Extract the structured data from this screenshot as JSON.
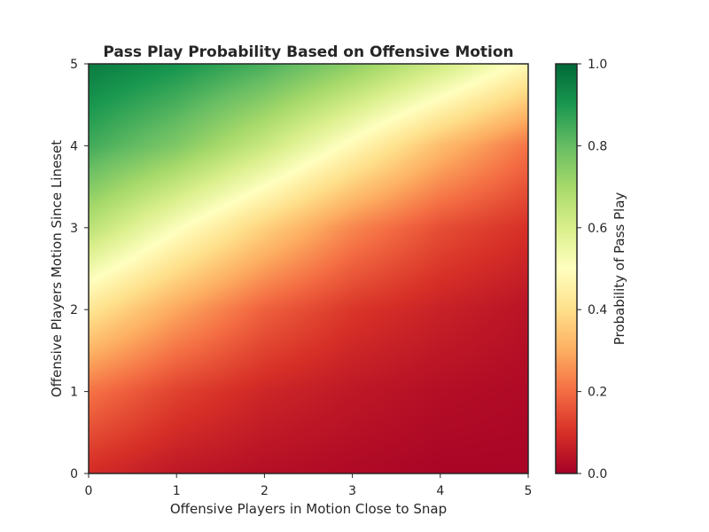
{
  "chart_data": {
    "type": "heatmap",
    "title": "Pass Play Probability Based on Offensive Motion",
    "xlabel": "Offensive Players in Motion Close to Snap",
    "ylabel": "Offensive Players Motion Since Lineset",
    "colorbar_label": "Probability of Pass Play",
    "colormap": "RdYlGn",
    "xlim": [
      0,
      5
    ],
    "ylim": [
      0,
      5
    ],
    "clim": [
      0,
      1
    ],
    "x_ticks": [
      "0",
      "1",
      "2",
      "3",
      "4",
      "5"
    ],
    "y_ticks": [
      "0",
      "1",
      "2",
      "3",
      "4",
      "5"
    ],
    "colorbar_ticks": [
      "0.0",
      "0.2",
      "0.4",
      "0.6",
      "0.8",
      "1.0"
    ],
    "surface": {
      "grid": [
        0,
        1,
        2,
        3,
        4,
        5
      ],
      "probabilities": [
        [
          0.09,
          0.05,
          0.03,
          0.02,
          0.01,
          0.01
        ],
        [
          0.21,
          0.13,
          0.08,
          0.05,
          0.03,
          0.02
        ],
        [
          0.42,
          0.29,
          0.18,
          0.11,
          0.07,
          0.04
        ],
        [
          0.66,
          0.51,
          0.37,
          0.24,
          0.15,
          0.1
        ],
        [
          0.85,
          0.76,
          0.63,
          0.48,
          0.33,
          0.21
        ],
        [
          0.96,
          0.91,
          0.84,
          0.74,
          0.62,
          0.48
        ]
      ],
      "row_axis": "y",
      "col_axis": "x"
    },
    "grid": false
  },
  "colors": {
    "colormap_stops": [
      "#a50026",
      "#d73027",
      "#f46d43",
      "#fdae61",
      "#fee08b",
      "#ffffbf",
      "#d9ef8b",
      "#a6d96a",
      "#66bd63",
      "#1a9850",
      "#006837"
    ],
    "frame": "#262626"
  }
}
